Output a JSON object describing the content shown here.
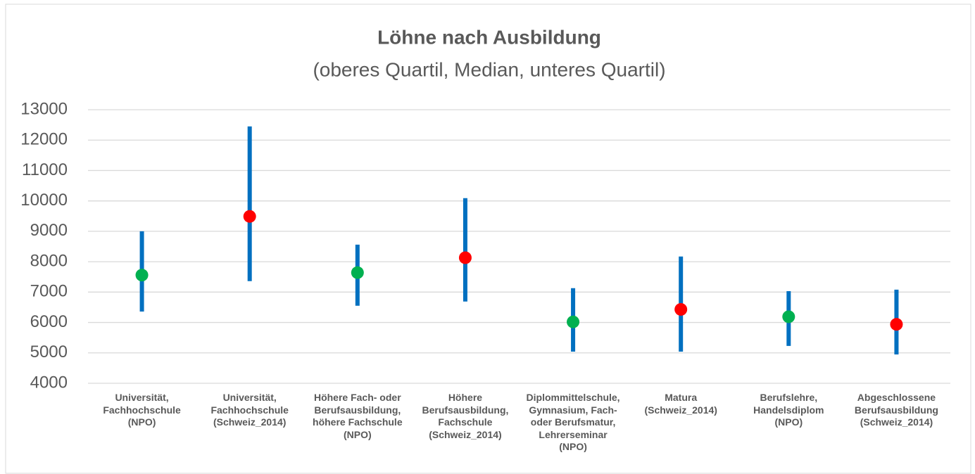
{
  "chart_data": {
    "type": "range",
    "title": "Löhne nach Ausbildung",
    "subtitle": "(oberes Quartil, Median, unteres Quartil)",
    "categories": [
      "Universität,\nFachhochschule\n(NPO)",
      "Universität,\nFachhochschule\n(Schweiz_2014)",
      "Höhere Fach- oder\nBerufsausbildung,\nhöhere Fachschule\n(NPO)",
      "Höhere\nBerufsausbildung,\nFachschule\n(Schweiz_2014)",
      "Diplommittelschule,\nGymnasium, Fach-\noder Berufsmatur,\nLehrerseminar\n(NPO)",
      "Matura\n(Schweiz_2014)",
      "Berufslehre,\nHandelsdiplom\n(NPO)",
      "Abgeschlossene\nBerufsausbildung\n(Schweiz_2014)"
    ],
    "high": [
      9000,
      12450,
      8560,
      10090,
      7130,
      8170,
      7030,
      7080
    ],
    "median": [
      7560,
      9490,
      7640,
      8130,
      6020,
      6430,
      6190,
      5940
    ],
    "low": [
      6360,
      7360,
      6550,
      6690,
      5040,
      5040,
      5230,
      4950
    ],
    "range_color": "#0070c0",
    "median_colors": [
      "#00b050",
      "#ff0000",
      "#00b050",
      "#ff0000",
      "#00b050",
      "#ff0000",
      "#00b050",
      "#ff0000"
    ],
    "ylim": [
      4000,
      13000
    ],
    "yticks": [
      4000,
      5000,
      6000,
      7000,
      8000,
      9000,
      10000,
      11000,
      12000,
      13000
    ],
    "grid": true
  }
}
